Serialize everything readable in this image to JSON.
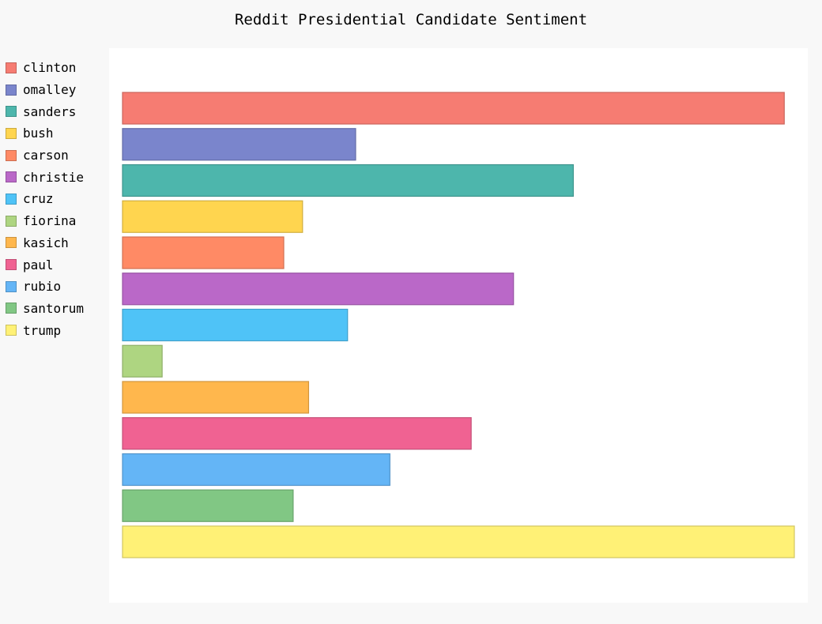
{
  "chart_data": {
    "type": "bar",
    "orientation": "horizontal",
    "title": "Reddit Presidential Candidate Sentiment",
    "xlabel": "",
    "ylabel": "",
    "grid": false,
    "legend": "left",
    "xlim": [
      0,
      100
    ],
    "series": [
      {
        "name": "clinton",
        "value": 98.5,
        "color": "#f67c72"
      },
      {
        "name": "omalley",
        "value": 34.7,
        "color": "#7a85cc"
      },
      {
        "name": "sanders",
        "value": 67.1,
        "color": "#4db6ac"
      },
      {
        "name": "bush",
        "value": 26.8,
        "color": "#ffd54f"
      },
      {
        "name": "carson",
        "value": 24.0,
        "color": "#ff8a65"
      },
      {
        "name": "christie",
        "value": 58.2,
        "color": "#ba68c8"
      },
      {
        "name": "cruz",
        "value": 33.5,
        "color": "#4fc3f7"
      },
      {
        "name": "fiorina",
        "value": 5.9,
        "color": "#aed581"
      },
      {
        "name": "kasich",
        "value": 27.7,
        "color": "#ffb74d"
      },
      {
        "name": "paul",
        "value": 51.9,
        "color": "#f06292"
      },
      {
        "name": "rubio",
        "value": 39.8,
        "color": "#64b5f6"
      },
      {
        "name": "santorum",
        "value": 25.4,
        "color": "#81c784"
      },
      {
        "name": "trump",
        "value": 100.0,
        "color": "#fff176"
      }
    ]
  }
}
